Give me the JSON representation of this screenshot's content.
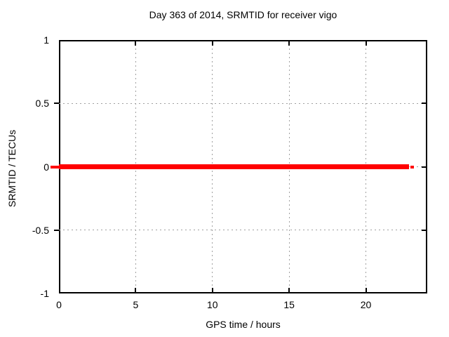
{
  "chart_data": {
    "type": "line",
    "title": "Day 363 of 2014, SRMTID for receiver vigo",
    "xlabel": "GPS time / hours",
    "ylabel": "SRMTID / TECUs",
    "xlim": [
      0,
      24
    ],
    "ylim": [
      -1,
      1
    ],
    "xticks": [
      0,
      5,
      10,
      15,
      20
    ],
    "yticks": [
      1,
      0.5,
      0,
      -0.5,
      -1
    ],
    "grid": true,
    "grid_xticks": [
      5,
      10,
      15,
      20
    ],
    "grid_yticks": [
      0.5,
      0,
      -0.5
    ],
    "legend": "none",
    "series": [
      {
        "name": "SRMTID",
        "value": 0,
        "x_start": 0,
        "x_end": 22.8,
        "leading_dash": [
          -0.55,
          0
        ],
        "trailing_dash": [
          22.9,
          23.15
        ]
      }
    ],
    "colors": {
      "line": "#ff0000",
      "grid": "#a0a0a0",
      "border": "#000000",
      "text": "#000000",
      "background": "#ffffff"
    }
  }
}
